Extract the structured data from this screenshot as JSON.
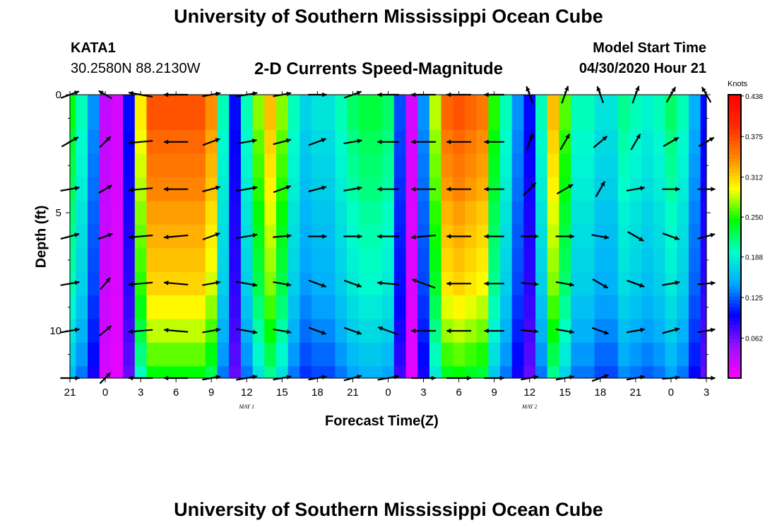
{
  "page": {
    "top_title": "University of Southern Mississippi Ocean Cube",
    "bottom_title": "University of Southern Mississippi Ocean Cube",
    "station_id": "KATA1",
    "station_coords": "30.2580N 88.2130W",
    "model_start_label": "Model Start Time",
    "model_start_value": "04/30/2020 Hour 21"
  },
  "chart_data": {
    "type": "heatmap",
    "title": "2-D Currents Speed-Magnitude",
    "xlabel": "Forecast Time(Z)",
    "ylabel": "Depth (ft)",
    "x_unit": "hours since model start",
    "xlim": [
      0,
      54
    ],
    "ylim": [
      0,
      12
    ],
    "y_inverted": true,
    "x_tick_labels": [
      "21",
      "0",
      "3",
      "6",
      "9",
      "12",
      "15",
      "18",
      "21",
      "0",
      "3",
      "6",
      "9",
      "12",
      "15",
      "18",
      "21",
      "0",
      "3"
    ],
    "day_labels": [
      {
        "label": "MAY 1",
        "hour": 15
      },
      {
        "label": "MAY 2",
        "hour": 39
      }
    ],
    "y_ticks": [
      0,
      5,
      10
    ],
    "colorbar": {
      "unit": "Knots",
      "range": [
        0.0,
        0.44
      ],
      "tick_labels": [
        "0.438",
        "0.375",
        "0.312",
        "0.250",
        "0.188",
        "0.125",
        "0.062"
      ],
      "tick_values": [
        0.438,
        0.375,
        0.312,
        0.25,
        0.188,
        0.125,
        0.062
      ],
      "colors": [
        "#ff00ff",
        "#9a10ff",
        "#0000ff",
        "#00aaff",
        "#00ffcc",
        "#00ff00",
        "#ffff00",
        "#ff8800",
        "#ff2a00",
        "#ff0000"
      ]
    },
    "times": [
      0,
      1,
      2,
      3,
      4,
      5,
      6,
      7,
      8,
      9,
      10,
      11,
      12,
      13,
      14,
      15,
      16,
      17,
      18,
      19,
      20,
      21,
      22,
      23,
      24,
      25,
      26,
      27,
      28,
      29,
      30,
      31,
      32,
      33,
      34,
      35,
      36,
      37,
      38,
      39,
      40,
      41,
      42,
      43,
      44,
      45,
      46,
      47,
      48,
      49,
      50,
      51,
      52,
      53,
      54
    ],
    "depths": [
      0,
      1,
      2,
      3,
      4,
      5,
      6,
      7,
      8,
      9,
      10,
      11,
      12
    ],
    "speed_profile": [
      0.24,
      0.2,
      0.14,
      0.03,
      0.02,
      0.1,
      0.3,
      0.37,
      0.37,
      0.37,
      0.37,
      0.37,
      0.34,
      0.2,
      0.1,
      0.2,
      0.27,
      0.32,
      0.27,
      0.2,
      0.17,
      0.18,
      0.18,
      0.2,
      0.22,
      0.23,
      0.23,
      0.22,
      0.12,
      0.02,
      0.14,
      0.28,
      0.36,
      0.37,
      0.36,
      0.35,
      0.25,
      0.2,
      0.14,
      0.1,
      0.2,
      0.32,
      0.26,
      0.2,
      0.2,
      0.18,
      0.18,
      0.21,
      0.2,
      0.19,
      0.2,
      0.22,
      0.2,
      0.15,
      0.1
    ],
    "depth_factor": [
      1.0,
      1.0,
      0.97,
      0.95,
      0.93,
      0.9,
      0.88,
      0.86,
      0.84,
      0.8,
      0.76,
      0.71,
      0.66
    ],
    "vectors": {
      "times": [
        0,
        3,
        6,
        9,
        12,
        15,
        18,
        21,
        24,
        27,
        30,
        33,
        36,
        39,
        42,
        45,
        48,
        51,
        54
      ],
      "depths": [
        0,
        2,
        4,
        6,
        8,
        10,
        12
      ],
      "directions_deg": [
        [
          70,
          300,
          280,
          270,
          80,
          80,
          80,
          90,
          70,
          270,
          270,
          270,
          270,
          340,
          20,
          340,
          20,
          30,
          330
        ],
        [
          60,
          45,
          265,
          270,
          70,
          80,
          75,
          70,
          80,
          270,
          270,
          270,
          270,
          20,
          30,
          50,
          30,
          60,
          60
        ],
        [
          80,
          60,
          265,
          270,
          75,
          80,
          70,
          75,
          80,
          270,
          270,
          270,
          270,
          45,
          60,
          30,
          80,
          90,
          90
        ],
        [
          75,
          70,
          265,
          265,
          70,
          80,
          85,
          90,
          90,
          270,
          265,
          270,
          270,
          90,
          90,
          100,
          120,
          110,
          75
        ],
        [
          80,
          40,
          265,
          275,
          80,
          100,
          100,
          110,
          110,
          275,
          290,
          270,
          270,
          95,
          100,
          120,
          110,
          80,
          85
        ],
        [
          80,
          50,
          265,
          275,
          80,
          100,
          100,
          110,
          110,
          290,
          270,
          270,
          270,
          95,
          100,
          110,
          80,
          75,
          80
        ],
        [
          90,
          45,
          270,
          270,
          80,
          80,
          80,
          80,
          75,
          80,
          90,
          90,
          90,
          80,
          80,
          70,
          80,
          85,
          90
        ]
      ],
      "speeds": [
        [
          0.24,
          0.14,
          0.37,
          0.37,
          0.22,
          0.3,
          0.22,
          0.22,
          0.22,
          0.3,
          0.38,
          0.38,
          0.26,
          0.2,
          0.22,
          0.2,
          0.22,
          0.2,
          0.2
        ],
        [
          0.24,
          0.14,
          0.37,
          0.37,
          0.22,
          0.27,
          0.22,
          0.22,
          0.22,
          0.3,
          0.38,
          0.38,
          0.26,
          0.2,
          0.22,
          0.2,
          0.22,
          0.2,
          0.2
        ],
        [
          0.24,
          0.14,
          0.37,
          0.37,
          0.22,
          0.3,
          0.22,
          0.22,
          0.22,
          0.3,
          0.38,
          0.38,
          0.26,
          0.2,
          0.22,
          0.2,
          0.22,
          0.2,
          0.2
        ],
        [
          0.24,
          0.14,
          0.37,
          0.37,
          0.22,
          0.3,
          0.22,
          0.22,
          0.22,
          0.3,
          0.38,
          0.38,
          0.26,
          0.2,
          0.22,
          0.2,
          0.22,
          0.2,
          0.2
        ],
        [
          0.24,
          0.14,
          0.37,
          0.37,
          0.22,
          0.3,
          0.22,
          0.22,
          0.22,
          0.3,
          0.38,
          0.38,
          0.26,
          0.2,
          0.22,
          0.2,
          0.22,
          0.2,
          0.2
        ],
        [
          0.24,
          0.14,
          0.37,
          0.37,
          0.22,
          0.3,
          0.22,
          0.22,
          0.22,
          0.3,
          0.38,
          0.38,
          0.26,
          0.2,
          0.22,
          0.2,
          0.22,
          0.2,
          0.2
        ],
        [
          0.24,
          0.14,
          0.37,
          0.37,
          0.22,
          0.3,
          0.22,
          0.22,
          0.22,
          0.3,
          0.38,
          0.38,
          0.26,
          0.2,
          0.22,
          0.2,
          0.22,
          0.2,
          0.2
        ]
      ]
    }
  }
}
